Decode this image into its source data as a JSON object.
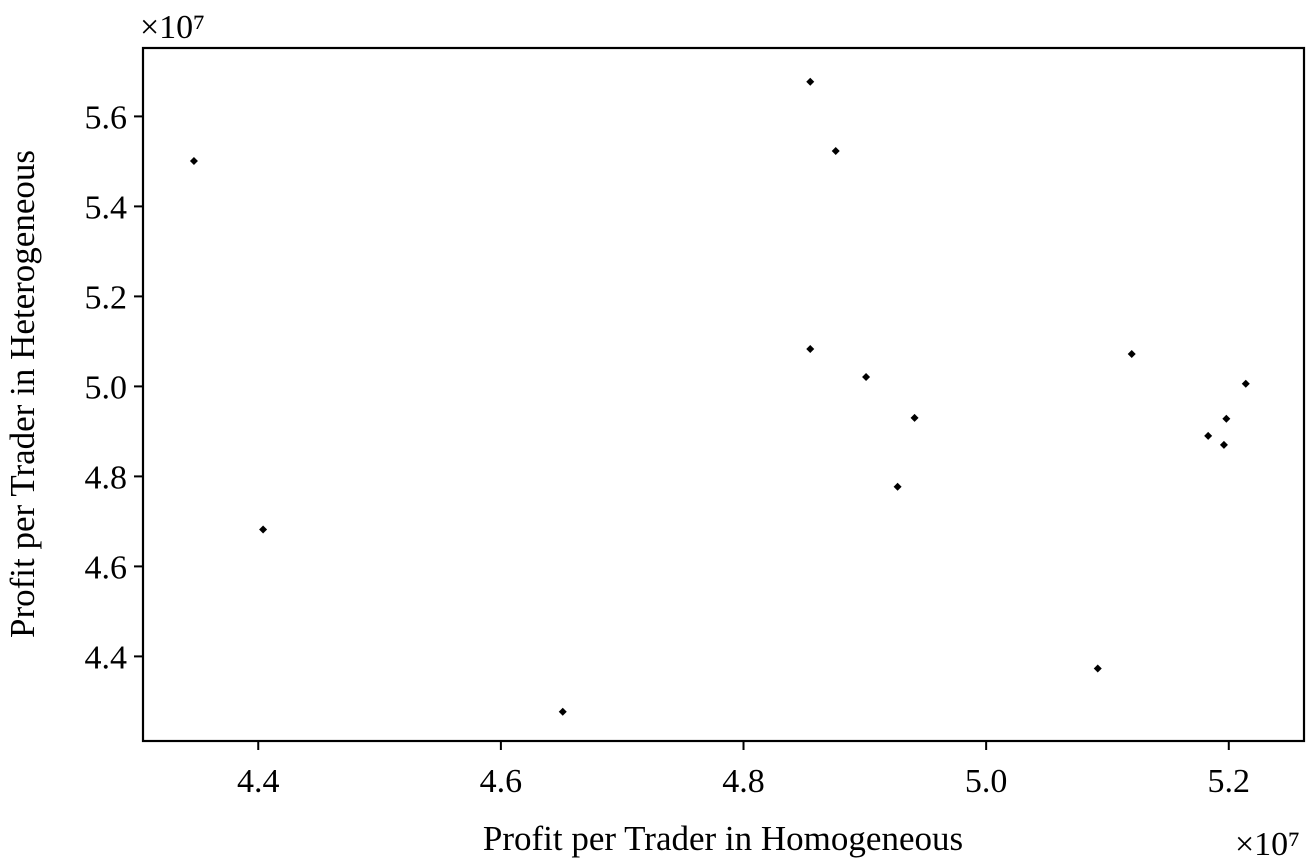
{
  "chart_data": {
    "type": "scatter",
    "title": "",
    "xlabel": "Profit per Trader in Homogeneous",
    "ylabel": "Profit per Trader in Heterogeneous",
    "x_multiplier": "×10⁷",
    "y_multiplier": "×10⁷",
    "xlim": [
      4.305,
      5.262
    ],
    "ylim": [
      4.212,
      5.752
    ],
    "x_ticks": [
      "4.4",
      "4.6",
      "4.8",
      "5.0",
      "5.2"
    ],
    "y_ticks": [
      "4.4",
      "4.6",
      "4.8",
      "5.0",
      "5.2",
      "5.4",
      "5.6"
    ],
    "grid": false,
    "legend": "none",
    "marker_color": "#000000",
    "points": [
      {
        "x": 4.347,
        "y": 5.501
      },
      {
        "x": 4.404,
        "y": 4.682
      },
      {
        "x": 4.651,
        "y": 4.277
      },
      {
        "x": 4.855,
        "y": 5.677
      },
      {
        "x": 4.876,
        "y": 5.523
      },
      {
        "x": 4.855,
        "y": 5.083
      },
      {
        "x": 4.901,
        "y": 5.021
      },
      {
        "x": 4.941,
        "y": 4.93
      },
      {
        "x": 4.927,
        "y": 4.777
      },
      {
        "x": 5.092,
        "y": 4.373
      },
      {
        "x": 5.12,
        "y": 5.072
      },
      {
        "x": 5.183,
        "y": 4.89
      },
      {
        "x": 5.198,
        "y": 4.928
      },
      {
        "x": 5.196,
        "y": 4.87
      },
      {
        "x": 5.214,
        "y": 5.006
      }
    ]
  }
}
